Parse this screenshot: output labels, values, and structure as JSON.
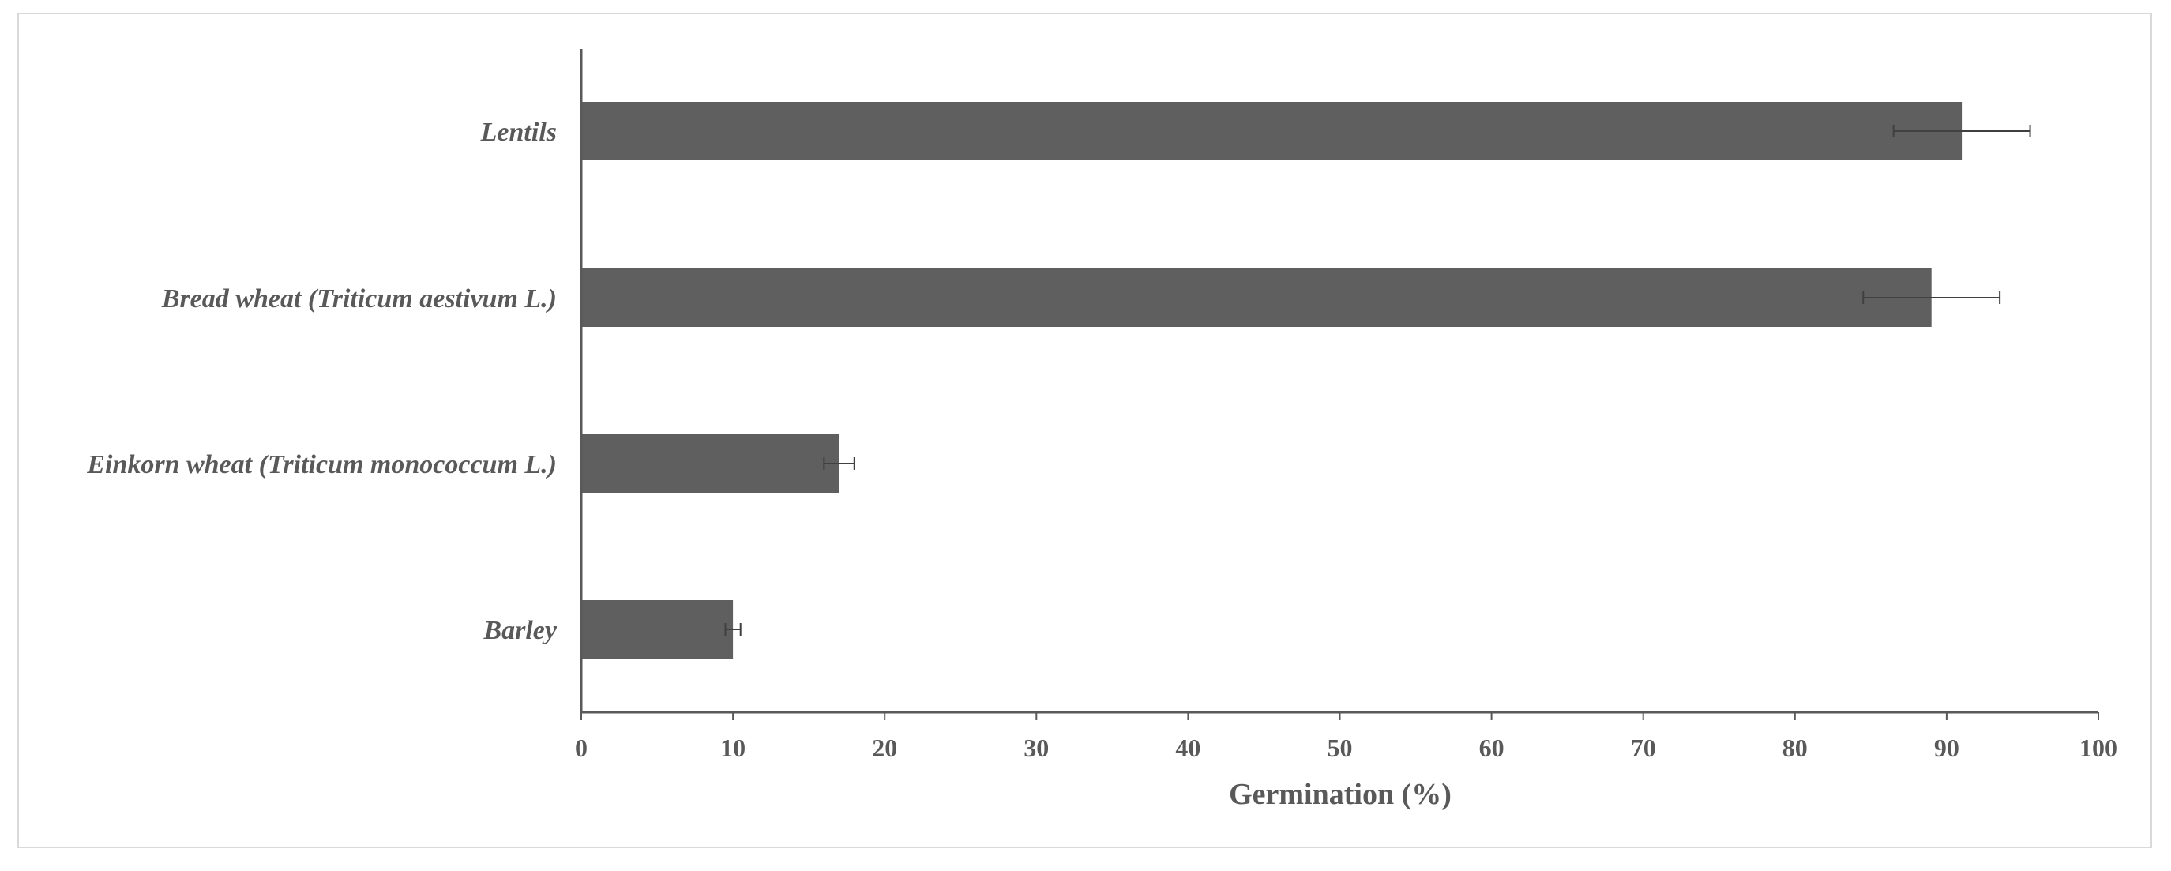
{
  "chart_data": {
    "type": "bar",
    "orientation": "horizontal",
    "title": "",
    "xlabel": "Germination (%)",
    "ylabel": "",
    "xlim": [
      0,
      100
    ],
    "xticks": [
      0,
      10,
      20,
      30,
      40,
      50,
      60,
      70,
      80,
      90,
      100
    ],
    "categories": [
      "Lentils",
      "Bread wheat (Triticum aestivum L.)",
      "Einkorn wheat (Triticum monococcum L.)",
      "Barley"
    ],
    "values": [
      91,
      89,
      17,
      10
    ],
    "errors": [
      4.5,
      4.5,
      1,
      0.5
    ],
    "bar_color": "#5f5f5f",
    "axis_color": "#595959",
    "grid": false,
    "legend": "none"
  }
}
